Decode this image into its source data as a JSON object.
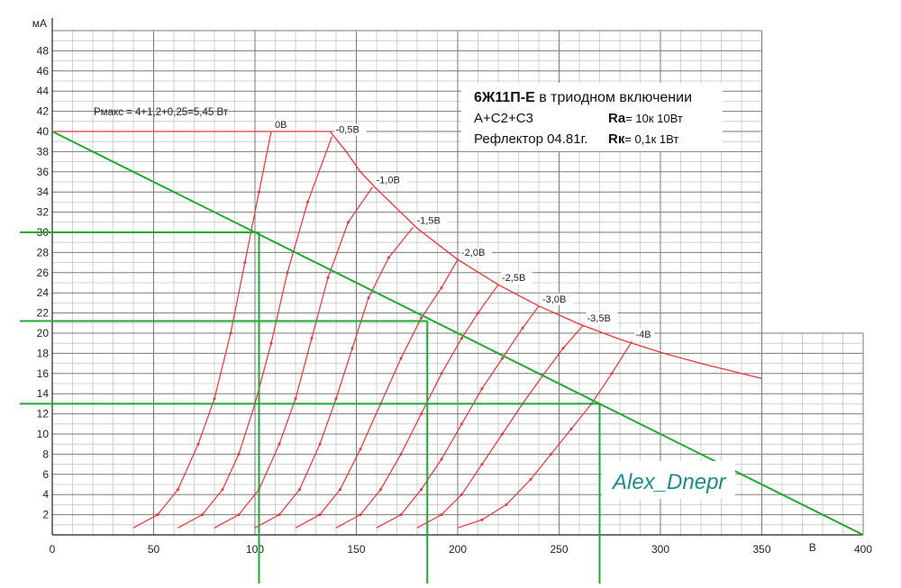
{
  "info": {
    "title_bold": "6Ж11П-Е",
    "title_rest": " в триодном включении",
    "line2_left": "А+С2+С3",
    "line2_r_label": "Rа",
    "line2_r_value": "= 10к  10Вт",
    "line3_left": "Рефлектор 04.81г.",
    "line3_r_label": "Rк",
    "line3_r_value": "= 0,1к 1Вт"
  },
  "pmax_label": "Рмакс = 4+1,2+0,25=5,45 Вт",
  "signature": "Alex_Dnepr",
  "colors": {
    "grid_minor": "#c6c6c6",
    "grid_major": "#7a7a7a",
    "curves": "#e8343a",
    "load_line": "#1fa832",
    "signature": "#1f8a8a"
  },
  "chart_data": {
    "type": "line",
    "xlabel": "В",
    "ylabel": "мА",
    "xlim": [
      0,
      400
    ],
    "ylim": [
      0,
      50
    ],
    "x_ticks": [
      0,
      50,
      100,
      150,
      200,
      250,
      300,
      350,
      400
    ],
    "y_ticks": [
      2,
      4,
      6,
      8,
      10,
      12,
      14,
      16,
      18,
      20,
      22,
      24,
      26,
      28,
      30,
      32,
      34,
      36,
      38,
      40,
      42,
      44,
      46,
      48
    ],
    "grid": true,
    "series": [
      {
        "name": "0В",
        "points": [
          [
            40,
            0.7
          ],
          [
            52,
            2.0
          ],
          [
            62,
            4.5
          ],
          [
            72,
            9.0
          ],
          [
            80,
            13.5
          ],
          [
            88,
            20.0
          ],
          [
            95,
            27.0
          ],
          [
            102,
            34.0
          ],
          [
            108,
            40.0
          ]
        ]
      },
      {
        "name": "-0,5В",
        "points": [
          [
            62,
            0.7
          ],
          [
            74,
            2.0
          ],
          [
            84,
            4.5
          ],
          [
            92,
            8.0
          ],
          [
            100,
            13.0
          ],
          [
            108,
            19.0
          ],
          [
            116,
            26.0
          ],
          [
            126,
            33.0
          ],
          [
            138,
            39.5
          ]
        ]
      },
      {
        "name": "-1,0В",
        "points": [
          [
            80,
            0.7
          ],
          [
            92,
            2.0
          ],
          [
            102,
            4.5
          ],
          [
            112,
            9.0
          ],
          [
            120,
            13.5
          ],
          [
            128,
            19.5
          ],
          [
            136,
            25.5
          ],
          [
            146,
            31.0
          ],
          [
            158,
            34.5
          ]
        ]
      },
      {
        "name": "-1,5В",
        "points": [
          [
            100,
            0.7
          ],
          [
            112,
            2.0
          ],
          [
            122,
            4.5
          ],
          [
            132,
            9.0
          ],
          [
            140,
            13.5
          ],
          [
            148,
            18.5
          ],
          [
            156,
            23.5
          ],
          [
            166,
            27.5
          ],
          [
            178,
            30.5
          ]
        ]
      },
      {
        "name": "-2,0В",
        "points": [
          [
            120,
            0.7
          ],
          [
            132,
            2.0
          ],
          [
            142,
            4.5
          ],
          [
            152,
            8.5
          ],
          [
            162,
            13.0
          ],
          [
            172,
            17.5
          ],
          [
            182,
            21.5
          ],
          [
            192,
            24.5
          ],
          [
            200,
            27.3
          ]
        ]
      },
      {
        "name": "-2,5В",
        "points": [
          [
            140,
            0.7
          ],
          [
            152,
            2.0
          ],
          [
            162,
            4.5
          ],
          [
            172,
            8.0
          ],
          [
            182,
            12.0
          ],
          [
            192,
            16.0
          ],
          [
            202,
            19.5
          ],
          [
            210,
            22.0
          ],
          [
            220,
            24.8
          ]
        ]
      },
      {
        "name": "-3,0В",
        "points": [
          [
            160,
            0.7
          ],
          [
            172,
            2.0
          ],
          [
            182,
            4.5
          ],
          [
            192,
            7.5
          ],
          [
            202,
            11.0
          ],
          [
            212,
            14.5
          ],
          [
            222,
            17.5
          ],
          [
            232,
            20.5
          ],
          [
            240,
            22.7
          ]
        ]
      },
      {
        "name": "-3,5В",
        "points": [
          [
            180,
            0.7
          ],
          [
            192,
            2.0
          ],
          [
            202,
            4.0
          ],
          [
            212,
            7.0
          ],
          [
            222,
            10.0
          ],
          [
            232,
            13.0
          ],
          [
            242,
            15.8
          ],
          [
            252,
            18.5
          ],
          [
            262,
            20.8
          ]
        ]
      },
      {
        "name": "-4В",
        "points": [
          [
            200,
            0.7
          ],
          [
            212,
            1.5
          ],
          [
            224,
            3.0
          ],
          [
            236,
            5.5
          ],
          [
            246,
            8.0
          ],
          [
            256,
            10.5
          ],
          [
            266,
            13.0
          ],
          [
            276,
            16.0
          ],
          [
            286,
            19.2
          ]
        ]
      }
    ],
    "pmax_curve": [
      [
        0,
        40
      ],
      [
        137,
        40
      ],
      [
        145,
        38
      ],
      [
        152,
        36
      ],
      [
        160,
        34.3
      ],
      [
        180,
        30.4
      ],
      [
        200,
        27.3
      ],
      [
        220,
        24.8
      ],
      [
        240,
        22.7
      ],
      [
        260,
        20.9
      ],
      [
        280,
        19.4
      ],
      [
        300,
        18.1
      ],
      [
        320,
        17.0
      ],
      [
        340,
        16.0
      ],
      [
        350,
        15.5
      ]
    ],
    "load_line": [
      [
        0,
        40
      ],
      [
        400,
        0
      ]
    ],
    "guide_lines": {
      "horizontal_ma": [
        30,
        21.2,
        13
      ],
      "vertical_v": [
        102,
        185,
        270
      ]
    }
  }
}
